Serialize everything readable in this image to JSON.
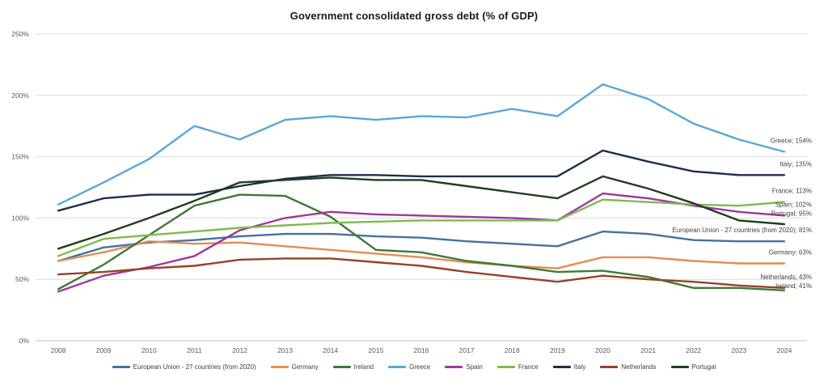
{
  "chart_data": {
    "type": "line",
    "title": "Government consolidated  gross debt (% of GDP)",
    "xlabel": "",
    "ylabel": "",
    "ylim": [
      0,
      250
    ],
    "y_ticks": [
      "0%",
      "50%",
      "100%",
      "150%",
      "200%",
      "250%"
    ],
    "categories": [
      "2008",
      "2009",
      "2010",
      "2011",
      "2012",
      "2013",
      "2014",
      "2015",
      "2016",
      "2017",
      "2018",
      "2019",
      "2020",
      "2021",
      "2022",
      "2023",
      "2024"
    ],
    "grid": "horizontal",
    "legend_position": "bottom",
    "series": [
      {
        "name": "European Union - 27 countries (from 2020)",
        "color": "#44729e",
        "end_label": "European Union - 27 countries (from 2020); 81%",
        "values": [
          65,
          76,
          80,
          82,
          85,
          87,
          87,
          85,
          84,
          81,
          79,
          77,
          89,
          87,
          82,
          81,
          81
        ]
      },
      {
        "name": "Germany",
        "color": "#e48c54",
        "end_label": "Germany; 63%",
        "values": [
          65,
          72,
          81,
          79,
          80,
          77,
          74,
          71,
          68,
          64,
          61,
          59,
          68,
          68,
          65,
          63,
          63
        ]
      },
      {
        "name": "Ireland",
        "color": "#3c7a36",
        "end_label": "Ireland; 41%",
        "values": [
          42,
          62,
          86,
          110,
          119,
          118,
          101,
          74,
          72,
          65,
          61,
          56,
          57,
          52,
          43,
          43,
          41
        ]
      },
      {
        "name": "Greece",
        "color": "#5aa7d6",
        "end_label": "Greece; 154%",
        "values": [
          111,
          129,
          148,
          175,
          164,
          180,
          183,
          180,
          183,
          182,
          189,
          183,
          209,
          197,
          177,
          164,
          154
        ]
      },
      {
        "name": "Spain",
        "color": "#a0359e",
        "end_label": "Spain; 102%",
        "values": [
          40,
          53,
          60,
          69,
          90,
          100,
          105,
          103,
          102,
          101,
          100,
          98,
          120,
          116,
          110,
          105,
          102
        ]
      },
      {
        "name": "France",
        "color": "#7fba4e",
        "end_label": "France; 113%",
        "values": [
          69,
          83,
          86,
          89,
          92,
          94,
          96,
          97,
          98,
          98,
          98,
          98,
          115,
          113,
          111,
          110,
          113
        ]
      },
      {
        "name": "Italy",
        "color": "#1c2f49",
        "end_label": "Italy; 135%",
        "values": [
          106,
          116,
          119,
          119,
          126,
          132,
          135,
          135,
          134,
          134,
          134,
          134,
          155,
          146,
          138,
          135,
          135
        ]
      },
      {
        "name": "Netherlands",
        "color": "#954229",
        "end_label": "Netherlands; 43%",
        "values": [
          54,
          56,
          59,
          61,
          66,
          67,
          67,
          64,
          61,
          56,
          52,
          48,
          53,
          50,
          48,
          45,
          43
        ]
      },
      {
        "name": "Portugal",
        "color": "#213d1f",
        "end_label": "Portugal; 95%",
        "values": [
          75,
          87,
          100,
          114,
          129,
          131,
          133,
          131,
          131,
          126,
          121,
          116,
          134,
          124,
          112,
          98,
          95
        ]
      }
    ]
  }
}
